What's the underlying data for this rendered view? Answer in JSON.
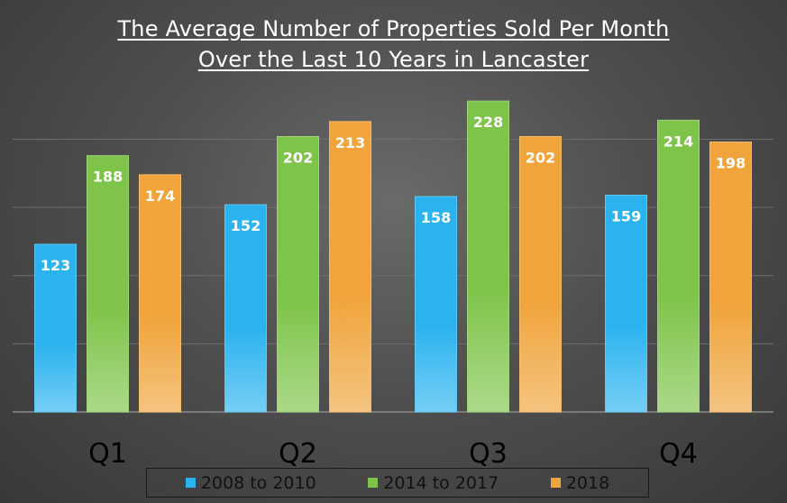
{
  "chart_data": {
    "type": "bar",
    "title": "The Average Number of Properties Sold Per Month",
    "subtitle": "Over the Last 10 Years in Lancaster",
    "categories": [
      "Q1",
      "Q2",
      "Q3",
      "Q4"
    ],
    "series": [
      {
        "name": "2008 to 2010",
        "color": "#2bb3ef",
        "values": [
          123,
          152,
          158,
          159
        ]
      },
      {
        "name": "2014 to 2017",
        "color": "#7ec44a",
        "values": [
          188,
          202,
          228,
          214
        ]
      },
      {
        "name": "2018",
        "color": "#f0a43b",
        "values": [
          174,
          213,
          202,
          198
        ]
      }
    ],
    "ylim": [
      0,
      240
    ],
    "grid": true,
    "legend_position": "bottom",
    "data_labels": true
  }
}
